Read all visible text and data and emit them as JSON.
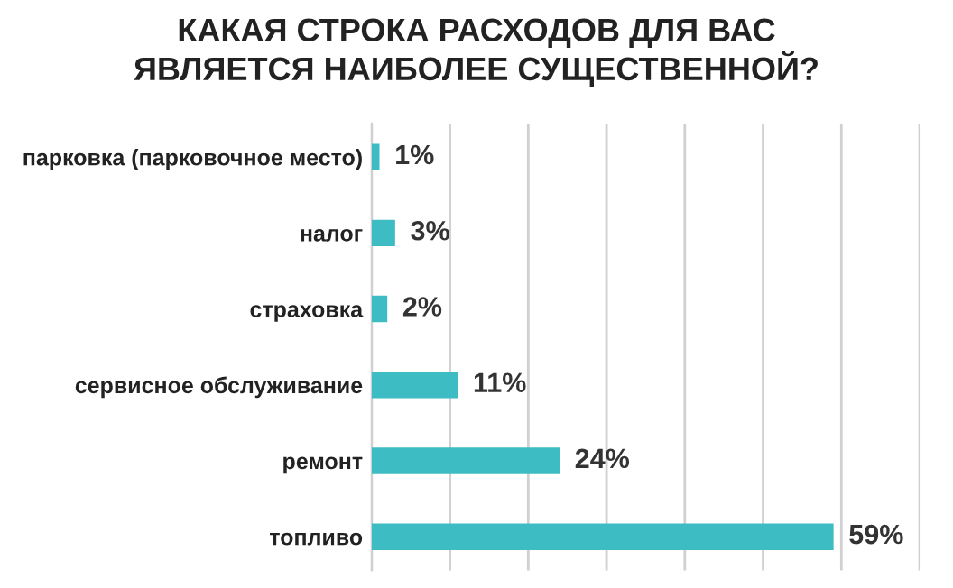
{
  "chart_data": {
    "type": "bar",
    "orientation": "horizontal",
    "title": "КАКАЯ СТРОКА РАСХОДОВ ДЛЯ ВАС\nЯВЛЯЕТСЯ НАИБОЛЕЕ СУЩЕСТВЕННОЙ?",
    "categories": [
      "парковка (парковочное место)",
      "налог",
      "страховка",
      "сервисное обслуживание",
      "ремонт",
      "топливо"
    ],
    "values": [
      1,
      3,
      2,
      11,
      24,
      59
    ],
    "value_labels": [
      "1%",
      "3%",
      "2%",
      "11%",
      "24%",
      "59%"
    ],
    "color": "#3dbcc4",
    "xlim": [
      0,
      70
    ],
    "xticks": [
      {
        "value": 0,
        "label": null
      },
      {
        "value": 10,
        "label": null
      },
      {
        "value": 20,
        "label": null
      },
      {
        "value": 30,
        "label": null
      },
      {
        "value": 40,
        "label": null
      },
      {
        "value": 50,
        "label": null
      },
      {
        "value": 60,
        "label": null
      },
      {
        "value": 70,
        "label": null
      }
    ],
    "grid": "x",
    "tick_labels": "y",
    "legend": false
  }
}
